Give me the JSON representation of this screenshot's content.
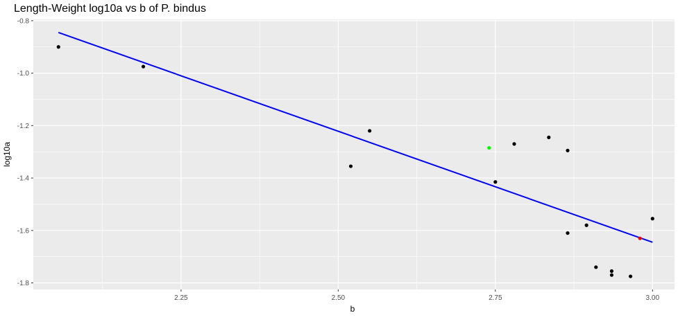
{
  "chart_data": {
    "type": "scatter",
    "title": "Length-Weight log10a vs b of P. bindus",
    "xlabel": "b",
    "ylabel": "log10a",
    "xlim": [
      2.015,
      3.035
    ],
    "ylim": [
      -1.825,
      -0.795
    ],
    "x_ticks": [
      2.25,
      2.5,
      2.75,
      3.0
    ],
    "x_tick_labels": [
      "2.25",
      "2.50",
      "2.75",
      "3.00"
    ],
    "y_ticks": [
      -0.8,
      -1.0,
      -1.2,
      -1.4,
      -1.6,
      -1.8
    ],
    "y_tick_labels": [
      "-0.8",
      "-1.0",
      "-1.2",
      "-1.4",
      "-1.6",
      "-1.8"
    ],
    "grid": true,
    "legend": "none",
    "colors": {
      "panel_background": "#ebebeb",
      "grid": "#ffffff",
      "point_default": "#000000",
      "point_highlight_green": "#00ff00",
      "point_highlight_red": "#ff0000",
      "fit_line": "#0000ff"
    },
    "points": [
      {
        "x": 2.055,
        "y": -0.9,
        "color": "black"
      },
      {
        "x": 2.19,
        "y": -0.975,
        "color": "black"
      },
      {
        "x": 2.52,
        "y": -1.355,
        "color": "black"
      },
      {
        "x": 2.55,
        "y": -1.22,
        "color": "black"
      },
      {
        "x": 2.74,
        "y": -1.285,
        "color": "green"
      },
      {
        "x": 2.75,
        "y": -1.415,
        "color": "black"
      },
      {
        "x": 2.78,
        "y": -1.27,
        "color": "black"
      },
      {
        "x": 2.835,
        "y": -1.245,
        "color": "black"
      },
      {
        "x": 2.865,
        "y": -1.295,
        "color": "black"
      },
      {
        "x": 2.865,
        "y": -1.61,
        "color": "black"
      },
      {
        "x": 2.895,
        "y": -1.58,
        "color": "black"
      },
      {
        "x": 2.91,
        "y": -1.74,
        "color": "black"
      },
      {
        "x": 2.935,
        "y": -1.755,
        "color": "black"
      },
      {
        "x": 2.935,
        "y": -1.77,
        "color": "black"
      },
      {
        "x": 2.965,
        "y": -1.775,
        "color": "black"
      },
      {
        "x": 2.98,
        "y": -1.63,
        "color": "red"
      },
      {
        "x": 3.0,
        "y": -1.555,
        "color": "black"
      }
    ],
    "fit_line": {
      "x": [
        2.055,
        3.0
      ],
      "y": [
        -0.845,
        -1.645
      ]
    }
  }
}
